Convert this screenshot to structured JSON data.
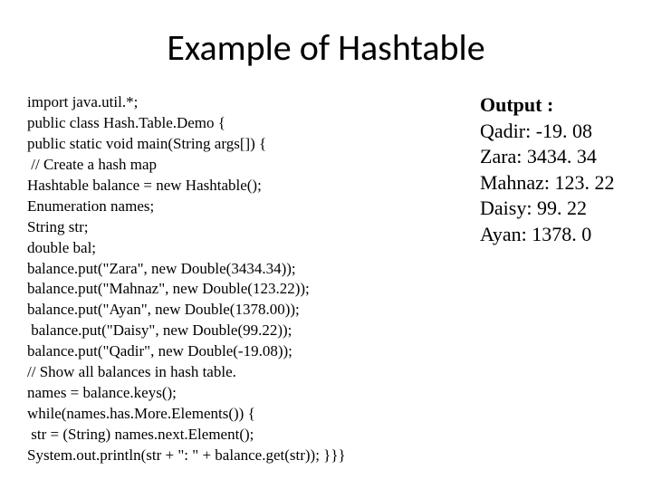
{
  "title": "Example of Hashtable",
  "code_lines": [
    "import java.util.*;",
    "public class Hash.Table.Demo {",
    "public static void main(String args[]) {",
    " // Create a hash map",
    "Hashtable balance = new Hashtable();",
    "Enumeration names;",
    "String str;",
    "double bal;",
    "balance.put(\"Zara\", new Double(3434.34));",
    "balance.put(\"Mahnaz\", new Double(123.22));",
    "balance.put(\"Ayan\", new Double(1378.00));",
    " balance.put(\"Daisy\", new Double(99.22));",
    "balance.put(\"Qadir\", new Double(-19.08));",
    "// Show all balances in hash table.",
    "names = balance.keys();",
    "while(names.has.More.Elements()) {",
    " str = (String) names.next.Element();",
    "System.out.println(str + \": \" + balance.get(str)); }}}"
  ],
  "output": {
    "label": "Output :",
    "lines": [
      "Qadir: -19. 08",
      "Zara: 3434. 34",
      "Mahnaz: 123. 22",
      "Daisy: 99. 22",
      "Ayan: 1378. 0"
    ]
  },
  "styles": {
    "title_font": "Calibri",
    "title_fontsize": 40,
    "body_font": "Times New Roman",
    "code_fontsize": 17,
    "output_fontsize": 22,
    "background_color": "#ffffff",
    "text_color": "#000000"
  }
}
